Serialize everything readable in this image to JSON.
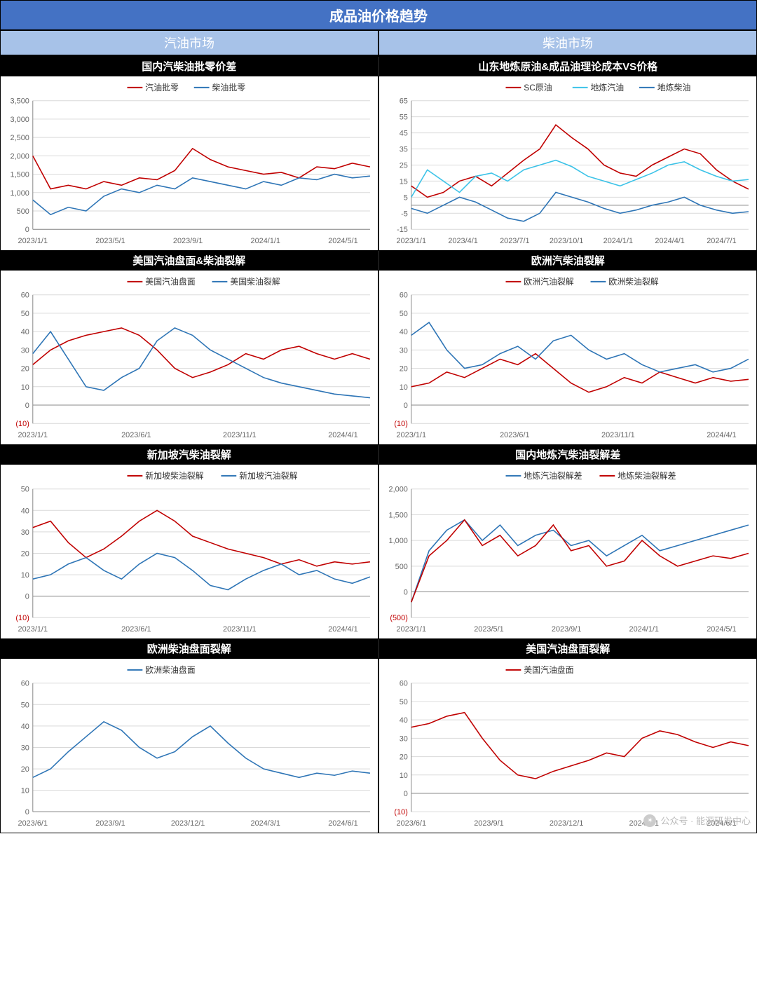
{
  "title": "成品油价格趋势",
  "left_header": "汽油市场",
  "right_header": "柴油市场",
  "colors": {
    "red": "#c00000",
    "blue": "#2e75b6",
    "cyan": "#3cc3e8",
    "grid": "#d9d9d9",
    "text": "#666666",
    "bg": "#ffffff"
  },
  "watermark": "公众号 · 能源研发中心",
  "rows": [
    {
      "title_left": "国内汽柴油批零价差",
      "title_right": "山东地炼原油&成品油理论成本VS价格",
      "left": {
        "type": "line",
        "ylim": [
          0,
          3500
        ],
        "ytick_step": 500,
        "xlabels": [
          "2023/1/1",
          "2023/5/1",
          "2023/9/1",
          "2024/1/1",
          "2024/5/1"
        ],
        "legend": [
          {
            "label": "汽油批零",
            "color": "#c00000"
          },
          {
            "label": "柴油批零",
            "color": "#2e75b6"
          }
        ],
        "series": [
          {
            "color": "#c00000",
            "data": [
              2000,
              1100,
              1200,
              1100,
              1300,
              1200,
              1400,
              1350,
              1600,
              2200,
              1900,
              1700,
              1600,
              1500,
              1550,
              1400,
              1700,
              1650,
              1800,
              1700
            ]
          },
          {
            "color": "#2e75b6",
            "data": [
              800,
              400,
              600,
              500,
              900,
              1100,
              1000,
              1200,
              1100,
              1400,
              1300,
              1200,
              1100,
              1300,
              1200,
              1400,
              1350,
              1500,
              1400,
              1450
            ]
          }
        ]
      },
      "right": {
        "type": "line",
        "ylim": [
          -15,
          65
        ],
        "ytick_step": 10,
        "xlabels": [
          "2023/1/1",
          "2023/4/1",
          "2023/7/1",
          "2023/10/1",
          "2024/1/1",
          "2024/4/1",
          "2024/7/1"
        ],
        "legend": [
          {
            "label": "SC原油",
            "color": "#c00000"
          },
          {
            "label": "地炼汽油",
            "color": "#3cc3e8"
          },
          {
            "label": "地炼柴油",
            "color": "#2e75b6"
          }
        ],
        "series": [
          {
            "color": "#c00000",
            "data": [
              12,
              5,
              8,
              15,
              18,
              12,
              20,
              28,
              35,
              50,
              42,
              35,
              25,
              20,
              18,
              25,
              30,
              35,
              32,
              22,
              15,
              10
            ]
          },
          {
            "color": "#3cc3e8",
            "data": [
              5,
              22,
              15,
              8,
              18,
              20,
              15,
              22,
              25,
              28,
              24,
              18,
              15,
              12,
              16,
              20,
              25,
              27,
              22,
              18,
              15,
              16
            ]
          },
          {
            "color": "#2e75b6",
            "data": [
              -2,
              -5,
              0,
              5,
              2,
              -3,
              -8,
              -10,
              -5,
              8,
              5,
              2,
              -2,
              -5,
              -3,
              0,
              2,
              5,
              0,
              -3,
              -5,
              -4
            ]
          }
        ]
      }
    },
    {
      "title_left": "美国汽油盘面&柴油裂解",
      "title_right": "欧洲汽柴油裂解",
      "left": {
        "type": "line",
        "ylim": [
          -10,
          60
        ],
        "ytick_step": 10,
        "neg_label": "(10)",
        "xlabels": [
          "2023/1/1",
          "2023/6/1",
          "2023/11/1",
          "2024/4/1"
        ],
        "legend": [
          {
            "label": "美国汽油盘面",
            "color": "#c00000"
          },
          {
            "label": "美国柴油裂解",
            "color": "#2e75b6"
          }
        ],
        "series": [
          {
            "color": "#c00000",
            "data": [
              22,
              30,
              35,
              38,
              40,
              42,
              38,
              30,
              20,
              15,
              18,
              22,
              28,
              25,
              30,
              32,
              28,
              25,
              28,
              25
            ]
          },
          {
            "color": "#2e75b6",
            "data": [
              28,
              40,
              25,
              10,
              8,
              15,
              20,
              35,
              42,
              38,
              30,
              25,
              20,
              15,
              12,
              10,
              8,
              6,
              5,
              4
            ]
          }
        ]
      },
      "right": {
        "type": "line",
        "ylim": [
          -10,
          60
        ],
        "ytick_step": 10,
        "neg_label": "(10)",
        "xlabels": [
          "2023/1/1",
          "2023/6/1",
          "2023/11/1",
          "2024/4/1"
        ],
        "legend": [
          {
            "label": "欧洲汽油裂解",
            "color": "#c00000"
          },
          {
            "label": "欧洲柴油裂解",
            "color": "#2e75b6"
          }
        ],
        "series": [
          {
            "color": "#c00000",
            "data": [
              10,
              12,
              18,
              15,
              20,
              25,
              22,
              28,
              20,
              12,
              7,
              10,
              15,
              12,
              18,
              15,
              12,
              15,
              13,
              14
            ]
          },
          {
            "color": "#2e75b6",
            "data": [
              38,
              45,
              30,
              20,
              22,
              28,
              32,
              25,
              35,
              38,
              30,
              25,
              28,
              22,
              18,
              20,
              22,
              18,
              20,
              25
            ]
          }
        ]
      }
    },
    {
      "title_left": "新加坡汽柴油裂解",
      "title_right": "国内地炼汽柴油裂解差",
      "left": {
        "type": "line",
        "ylim": [
          -10,
          50
        ],
        "ytick_step": 10,
        "neg_label": "(10)",
        "xlabels": [
          "2023/1/1",
          "2023/6/1",
          "2023/11/1",
          "2024/4/1"
        ],
        "legend": [
          {
            "label": "新加坡柴油裂解",
            "color": "#c00000"
          },
          {
            "label": "新加坡汽油裂解",
            "color": "#2e75b6"
          }
        ],
        "series": [
          {
            "color": "#c00000",
            "data": [
              32,
              35,
              25,
              18,
              22,
              28,
              35,
              40,
              35,
              28,
              25,
              22,
              20,
              18,
              15,
              17,
              14,
              16,
              15,
              16
            ]
          },
          {
            "color": "#2e75b6",
            "data": [
              8,
              10,
              15,
              18,
              12,
              8,
              15,
              20,
              18,
              12,
              5,
              3,
              8,
              12,
              15,
              10,
              12,
              8,
              6,
              9
            ]
          }
        ]
      },
      "right": {
        "type": "line",
        "ylim": [
          -500,
          2000
        ],
        "ytick_step": 500,
        "neg_label": "(500)",
        "xlabels": [
          "2023/1/1",
          "2023/5/1",
          "2023/9/1",
          "2024/1/1",
          "2024/5/1"
        ],
        "legend": [
          {
            "label": "地炼汽油裂解差",
            "color": "#2e75b6"
          },
          {
            "label": "地炼柴油裂解差",
            "color": "#c00000"
          }
        ],
        "series": [
          {
            "color": "#2e75b6",
            "data": [
              -200,
              800,
              1200,
              1400,
              1000,
              1300,
              900,
              1100,
              1200,
              900,
              1000,
              700,
              900,
              1100,
              800,
              900,
              1000,
              1100,
              1200,
              1300
            ]
          },
          {
            "color": "#c00000",
            "data": [
              -200,
              700,
              1000,
              1400,
              900,
              1100,
              700,
              900,
              1300,
              800,
              900,
              500,
              600,
              1000,
              700,
              500,
              600,
              700,
              650,
              750
            ]
          }
        ]
      }
    },
    {
      "title_left": "欧洲柴油盘面裂解",
      "title_right": "美国汽油盘面裂解",
      "left": {
        "type": "line",
        "ylim": [
          0,
          60
        ],
        "ytick_step": 10,
        "xlabels": [
          "2023/6/1",
          "2023/9/1",
          "2023/12/1",
          "2024/3/1",
          "2024/6/1"
        ],
        "legend": [
          {
            "label": "欧洲柴油盘面",
            "color": "#2e75b6"
          }
        ],
        "series": [
          {
            "color": "#2e75b6",
            "data": [
              16,
              20,
              28,
              35,
              42,
              38,
              30,
              25,
              28,
              35,
              40,
              32,
              25,
              20,
              18,
              16,
              18,
              17,
              19,
              18
            ]
          }
        ]
      },
      "right": {
        "type": "line",
        "ylim": [
          -10,
          60
        ],
        "ytick_step": 10,
        "neg_label": "(10)",
        "xlabels": [
          "2023/6/1",
          "2023/9/1",
          "2023/12/1",
          "2024/3/1",
          "2024/6/1"
        ],
        "legend": [
          {
            "label": "美国汽油盘面",
            "color": "#c00000"
          }
        ],
        "series": [
          {
            "color": "#c00000",
            "data": [
              36,
              38,
              42,
              44,
              30,
              18,
              10,
              8,
              12,
              15,
              18,
              22,
              20,
              30,
              34,
              32,
              28,
              25,
              28,
              26
            ]
          }
        ]
      }
    }
  ]
}
